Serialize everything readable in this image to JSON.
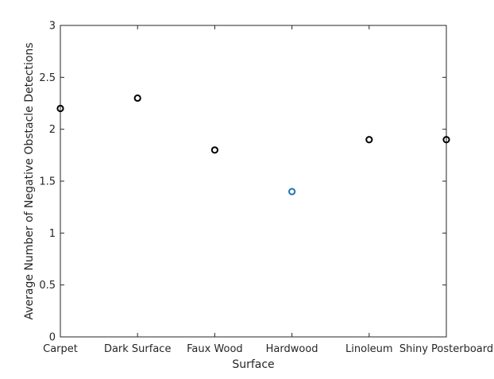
{
  "chart_data": {
    "type": "scatter",
    "categories": [
      "Carpet",
      "Dark Surface",
      "Faux Wood",
      "Hardwood",
      "Linoleum",
      "Shiny Posterboard"
    ],
    "values": [
      2.2,
      2.3,
      1.8,
      1.4,
      1.9,
      1.9
    ],
    "highlight_index": 3,
    "marker_color": "#000000",
    "highlight_color": "#1f77b4",
    "xlabel": "Surface",
    "ylabel": "Average Number of Negative Obstacle Detections",
    "ylim": [
      0,
      3
    ],
    "yticks": [
      "0",
      "0.5",
      "1",
      "1.5",
      "2",
      "2.5",
      "3"
    ],
    "grid": false,
    "legend": "none"
  }
}
